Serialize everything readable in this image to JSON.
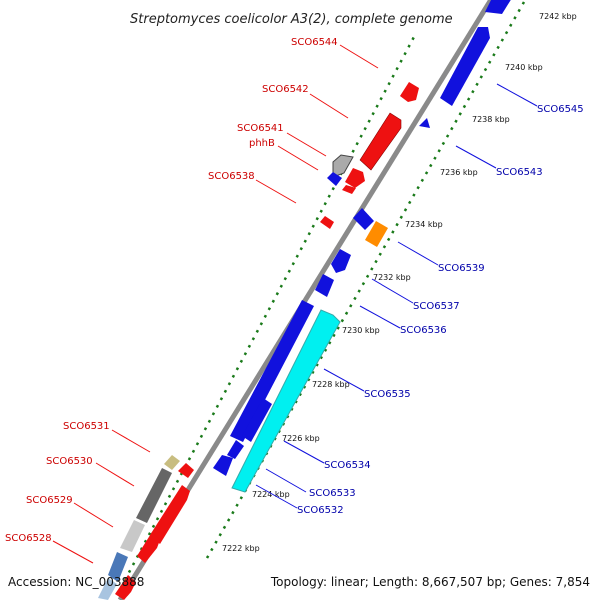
{
  "title": "Streptomyces coelicolor A3(2), complete genome",
  "accession": "Accession: NC_003888",
  "summary": "Topology: linear; Length: 8,667,507 bp; Genes: 7,854",
  "colors": {
    "forward_gene": "#ee1111",
    "reverse_gene": "#1111dd",
    "left_label": "#cc0000",
    "right_label": "#0000aa",
    "backbone": "#8a8a8a",
    "tick_marks": "#1a7a1a"
  },
  "scale_ticks": [
    "7222 kbp",
    "7224 kbp",
    "7226 kbp",
    "7228 kbp",
    "7230 kbp",
    "7232 kbp",
    "7234 kbp",
    "7236 kbp",
    "7238 kbp",
    "7240 kbp",
    "7242 kbp"
  ],
  "left_labels": [
    "SCO6544",
    "SCO6542",
    "SCO6541",
    "phhB",
    "SCO6538",
    "SCO6531",
    "SCO6530",
    "SCO6529",
    "SCO6528"
  ],
  "right_labels": [
    "SCO6545",
    "SCO6543",
    "SCO6539",
    "SCO6537",
    "SCO6536",
    "SCO6535",
    "SCO6534",
    "SCO6533",
    "SCO6532"
  ]
}
